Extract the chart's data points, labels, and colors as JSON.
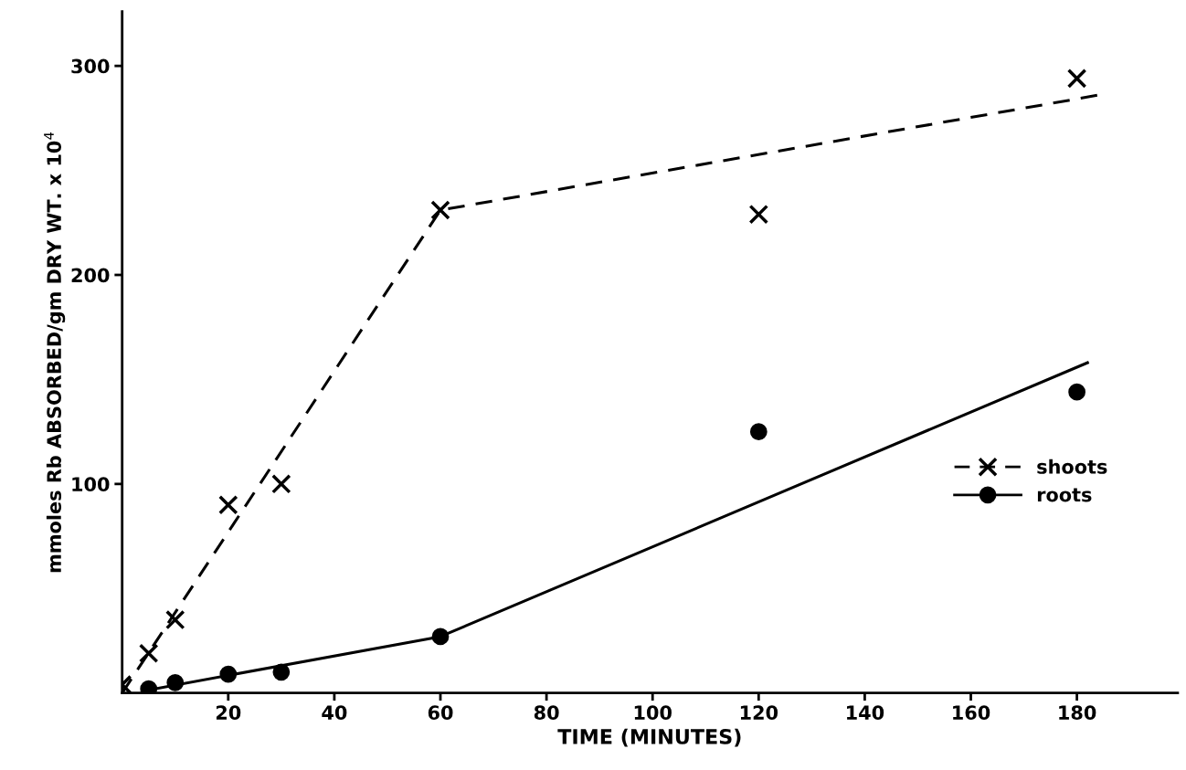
{
  "chart_data": {
    "type": "scatter",
    "xlabel": "TIME (MINUTES)",
    "ylabel": "mmoles Rb ABSORBED/gm DRY WT. x 10$^{4}$",
    "xlim": [
      0,
      199
    ],
    "ylim": [
      0,
      326
    ],
    "xticks": [
      20,
      40,
      60,
      80,
      100,
      120,
      140,
      160,
      180
    ],
    "yticks": [
      100,
      200,
      300
    ],
    "grid": false,
    "legend": "lower right",
    "series": [
      {
        "marker": "cross",
        "color": "#000000",
        "x": [
          0,
          5,
          10,
          20,
          30,
          60,
          120,
          180
        ],
        "values": [
          4,
          19,
          35,
          90,
          100,
          231,
          229,
          294
        ]
      },
      {
        "name": "shoots",
        "type": "line",
        "line_style": "dashed",
        "marker": "none",
        "color": "#000000",
        "x": [
          0,
          60,
          184
        ],
        "values": [
          0,
          231,
          286
        ]
      },
      {
        "marker": "circle",
        "color": "#000000",
        "x": [
          5,
          10,
          20,
          30,
          60,
          120,
          180
        ],
        "values": [
          2,
          5,
          9,
          10,
          27,
          125,
          144
        ]
      },
      {
        "name": "roots",
        "type": "line",
        "line_style": "solid",
        "marker": "none",
        "color": "#000000",
        "x": [
          4,
          60,
          182
        ],
        "values": [
          1,
          27,
          158
        ]
      }
    ]
  }
}
